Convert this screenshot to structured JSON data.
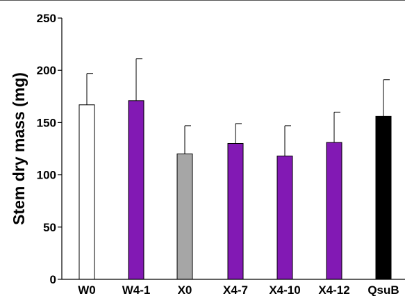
{
  "chart_data": {
    "type": "bar",
    "title": "",
    "xlabel": "",
    "ylabel": "Stem dry mass (mg)",
    "ylim": [
      0,
      250
    ],
    "yticks": [
      "0",
      "50",
      "100",
      "150",
      "200",
      "250"
    ],
    "categories": [
      "W0",
      "W4-1",
      "X0",
      "X4-7",
      "X4-10",
      "X4-12",
      "QsuB"
    ],
    "values": [
      167,
      171,
      120,
      130,
      118,
      131,
      156
    ],
    "errors": [
      30,
      40,
      27,
      19,
      29,
      29,
      35
    ],
    "colors": [
      "#ffffff",
      "#8219b4",
      "#a6a6a6",
      "#8219b4",
      "#8219b4",
      "#8219b4",
      "#000000"
    ],
    "grid": false,
    "legend": "none"
  }
}
